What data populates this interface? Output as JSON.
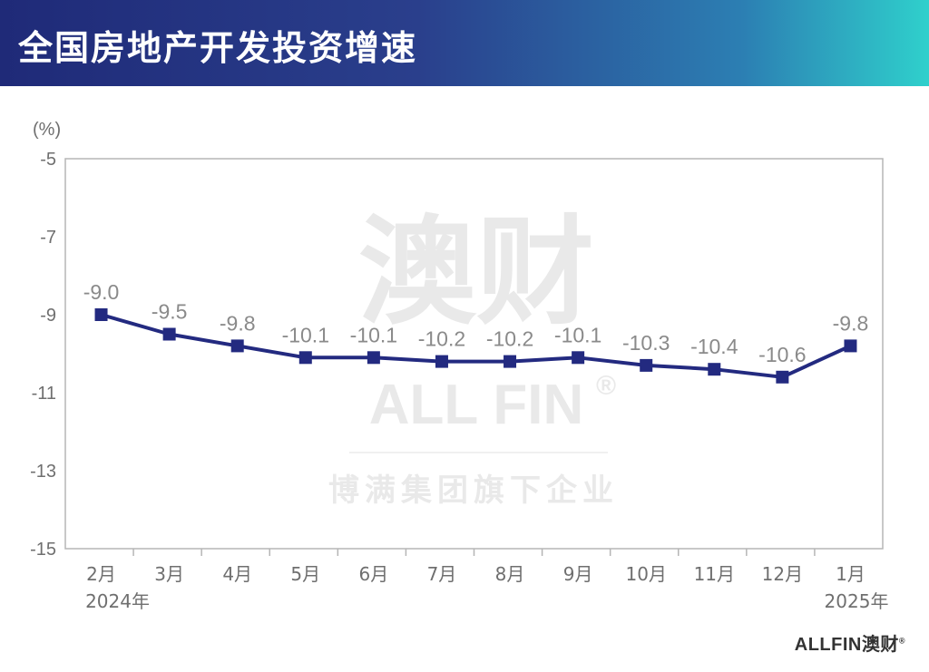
{
  "title": "全国房地产开发投资增速",
  "watermark": {
    "main": "澳财",
    "brand": "ALL FIN",
    "reg": "®",
    "tagline": "博满集团旗下企业"
  },
  "logo": {
    "text": "ALLFIN澳财",
    "reg": "®"
  },
  "colors": {
    "line": "#232a80",
    "axis": "#b5b5b5"
  },
  "chart_data": {
    "type": "line",
    "unit_label": "(%)",
    "categories": [
      "2月",
      "3月",
      "4月",
      "5月",
      "6月",
      "7月",
      "8月",
      "9月",
      "10月",
      "11月",
      "12月",
      "1月"
    ],
    "year_labels": [
      {
        "index": 0,
        "text": "2024年"
      },
      {
        "index": 11,
        "text": "2025年"
      }
    ],
    "series": [
      {
        "values": [
          -9.0,
          -9.5,
          -9.8,
          -10.1,
          -10.1,
          -10.2,
          -10.2,
          -10.1,
          -10.3,
          -10.4,
          -10.6,
          -9.8
        ]
      }
    ],
    "ylim": [
      -15,
      -5
    ],
    "yticks": [
      -5,
      -7,
      -9,
      -11,
      -13,
      -15
    ],
    "grid": false,
    "legend": "none"
  }
}
